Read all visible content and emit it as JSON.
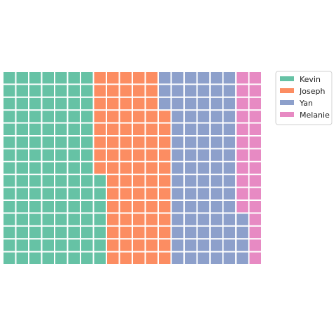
{
  "chart_data": {
    "type": "waffle",
    "rows": 15,
    "columns": 20,
    "fill_order": "column-major, bottom-to-top within each column, left to right",
    "series": [
      {
        "name": "Kevin",
        "value": 112,
        "color": "#66c2a5"
      },
      {
        "name": "Joseph",
        "value": 80,
        "color": "#fc8d62"
      },
      {
        "name": "Yan",
        "value": 82,
        "color": "#8da0cb"
      },
      {
        "name": "Melanie",
        "value": 26,
        "color": "#e78ac3"
      }
    ],
    "title": "",
    "legend": {
      "position": "top-right",
      "entries": [
        "Kevin",
        "Joseph",
        "Yan",
        "Melanie"
      ]
    },
    "grid": false,
    "axes": false
  }
}
